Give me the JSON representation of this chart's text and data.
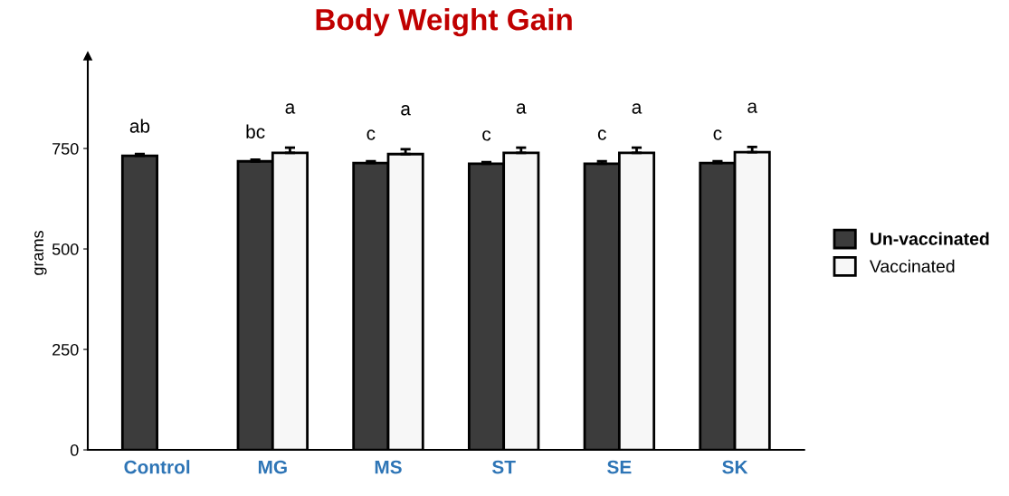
{
  "chart_data": {
    "type": "bar",
    "title": "Body Weight Gain",
    "ylabel": "grams",
    "categories": [
      "Control",
      "MG",
      "MS",
      "ST",
      "SE",
      "SK"
    ],
    "series": [
      {
        "name": "Un-vaccinated",
        "color": "#3c3c3c",
        "values": [
          732,
          718,
          714,
          712,
          712,
          714
        ],
        "errors": [
          4,
          4,
          4,
          4,
          6,
          4
        ],
        "value_labels": [
          "ab",
          "bc",
          "c",
          "c",
          "c",
          "c"
        ]
      },
      {
        "name": "Vaccinated",
        "color": "#f7f7f7",
        "values": [
          null,
          739,
          736,
          739,
          739,
          741
        ],
        "errors": [
          null,
          13,
          12,
          13,
          13,
          13
        ],
        "value_labels": [
          null,
          "a",
          "a",
          "a",
          "a",
          "a"
        ]
      }
    ],
    "ylim": [
      0,
      980
    ],
    "yticks": [
      0,
      250,
      500,
      750
    ],
    "grid": false,
    "legend": "right"
  }
}
